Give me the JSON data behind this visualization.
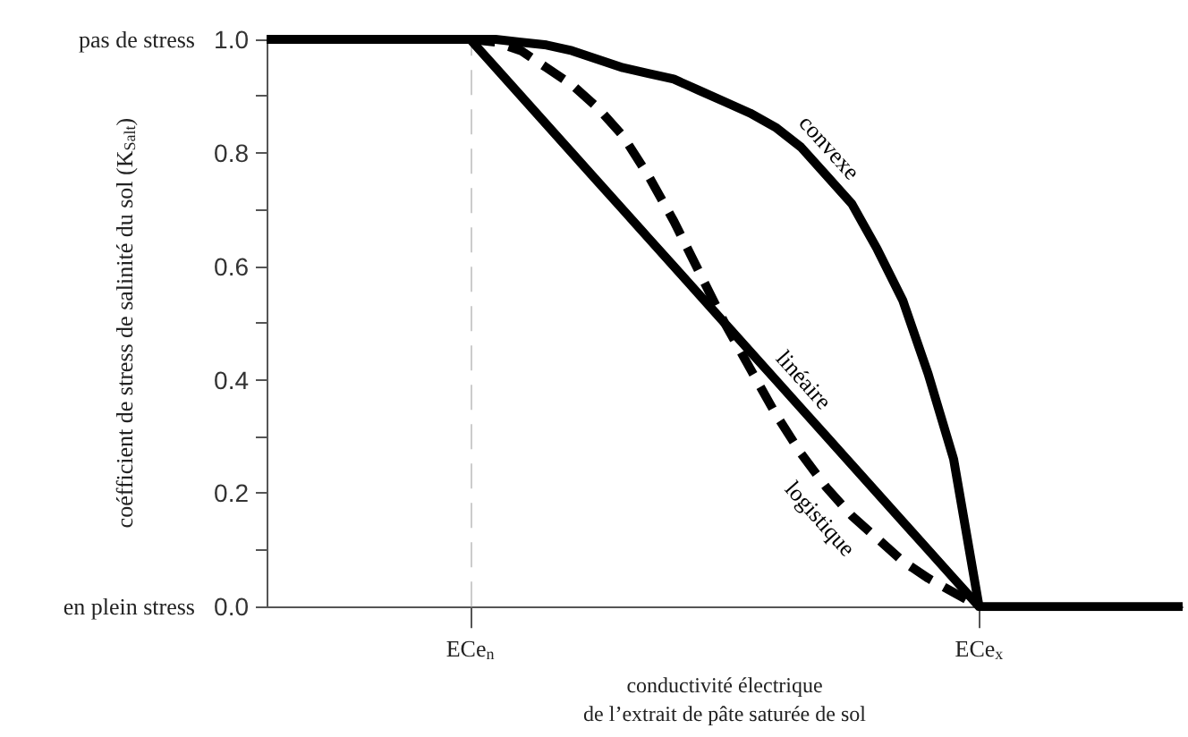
{
  "chart_data": {
    "type": "line",
    "xlabel": "conductivité électrique\nde l’extrait de pâte saturée de sol",
    "ylabel": "coéfficient de stress de salinité du sol (K$_{Salt}$)",
    "categories": [
      null,
      null,
      null,
      null,
      null,
      null,
      null,
      null,
      "ECe$_{n}$",
      null,
      null,
      null,
      null,
      null,
      null,
      null,
      null,
      null,
      null,
      null,
      null,
      null,
      null,
      null,
      null,
      null,
      null,
      null,
      "ECe$_{x}$",
      null,
      null,
      null,
      null,
      null,
      null,
      null,
      null
    ],
    "ylim": [
      0,
      1
    ],
    "yticks": [
      {
        "value": 0,
        "label": "0.0"
      },
      {
        "value": 0.1,
        "label": null
      },
      {
        "value": 0.2,
        "label": "0.2"
      },
      {
        "value": 0.3,
        "label": null
      },
      {
        "value": 0.4,
        "label": "0.4"
      },
      {
        "value": 0.5,
        "label": null
      },
      {
        "value": 0.6,
        "label": "0.6"
      },
      {
        "value": 0.7,
        "label": null
      },
      {
        "value": 0.8,
        "label": "0.8"
      },
      {
        "value": 0.9,
        "label": null
      },
      {
        "value": 1,
        "label": "1.0"
      }
    ],
    "annotations": [
      "pas de stress",
      "en plein stress"
    ],
    "series": [
      {
        "name": "linéaire",
        "color": "#000000",
        "line_style": "solid",
        "values": [
          1,
          1,
          1,
          1,
          1,
          1,
          1,
          1,
          1,
          0.95,
          0.9,
          0.85,
          0.8,
          0.75,
          0.7,
          0.65,
          0.6,
          0.55,
          0.5,
          0.45,
          0.4,
          0.35,
          0.3,
          0.25,
          0.2,
          0.15,
          0.1,
          0.05,
          0,
          0,
          0,
          0,
          0,
          0,
          0,
          0,
          0
        ]
      },
      {
        "name": "convexe",
        "color": "#000000",
        "line_style": "solid",
        "values": [
          null,
          null,
          null,
          null,
          null,
          null,
          null,
          null,
          1,
          1,
          0.995,
          0.99,
          0.98,
          0.965,
          0.95,
          0.94,
          0.93,
          0.91,
          0.89,
          0.87,
          0.845,
          0.81,
          0.76,
          0.71,
          0.63,
          0.54,
          0.41,
          0.26,
          0,
          null,
          null,
          null,
          null,
          null,
          null,
          null,
          null
        ]
      },
      {
        "name": "logistique",
        "color": "#000000",
        "line_style": "dashed",
        "values": [
          null,
          null,
          null,
          null,
          null,
          null,
          null,
          null,
          1,
          0.995,
          0.98,
          0.95,
          0.92,
          0.88,
          0.83,
          0.76,
          0.68,
          0.59,
          0.5,
          0.42,
          0.34,
          0.27,
          0.21,
          0.16,
          0.12,
          0.08,
          0.05,
          0.025,
          0,
          null,
          null,
          null,
          null,
          null,
          null,
          null,
          null
        ]
      }
    ],
    "ref_lines": [
      {
        "axis": "x",
        "value": "ECe$_{n}$",
        "color": "#cccccc",
        "line_style": "dashed"
      }
    ],
    "grid": false,
    "legend": false,
    "marker": "none"
  }
}
